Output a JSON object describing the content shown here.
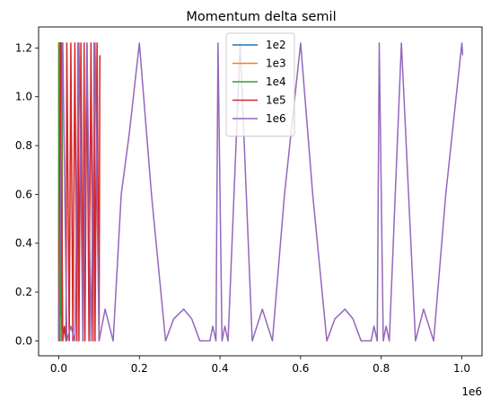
{
  "chart_data": {
    "type": "line",
    "title": "Momentum delta semil",
    "xlabel": "",
    "ylabel": "",
    "x_offset_label": "1e6",
    "xlim": [
      -50000,
      1050000
    ],
    "ylim": [
      -0.061,
      1.286
    ],
    "x_ticks": [
      0.0,
      0.2,
      0.4,
      0.6,
      0.8,
      1.0
    ],
    "x_tick_labels": [
      "0.0",
      "0.2",
      "0.4",
      "0.6",
      "0.8",
      "1.0"
    ],
    "y_ticks": [
      0.0,
      0.2,
      0.4,
      0.6,
      0.8,
      1.0,
      1.2
    ],
    "y_tick_labels": [
      "0.0",
      "0.2",
      "0.4",
      "0.6",
      "0.8",
      "1.0",
      "1.2"
    ],
    "grid": false,
    "legend_position": "top-center",
    "series": [
      {
        "name": "1e2",
        "color": "#1f77b4",
        "x": [
          0,
          10,
          20,
          30,
          40,
          50,
          60,
          70,
          80,
          90,
          100
        ],
        "y": [
          0.0,
          1.22,
          0.0,
          1.22,
          0.3,
          1.22,
          0.0,
          1.22,
          0.1,
          1.22,
          1.17
        ]
      },
      {
        "name": "1e3",
        "color": "#ff7f0e",
        "x": [
          0,
          100,
          200,
          300,
          400,
          500,
          600,
          700,
          800,
          900,
          1000
        ],
        "y": [
          0.0,
          1.22,
          0.0,
          1.22,
          0.2,
          1.22,
          0.0,
          1.22,
          0.1,
          1.22,
          1.17
        ]
      },
      {
        "name": "1e4",
        "color": "#2ca02c",
        "x": [
          0,
          1000,
          2000,
          3000,
          4000,
          5000,
          6000,
          7000,
          8000,
          9000,
          10000
        ],
        "y": [
          0.0,
          1.22,
          0.0,
          1.22,
          0.1,
          1.22,
          0.0,
          1.22,
          0.05,
          1.22,
          1.17
        ]
      },
      {
        "name": "1e5",
        "color": "#d62728",
        "x": [
          0,
          5000,
          10000,
          14000,
          18000,
          20000,
          26000,
          30000,
          35000,
          40000,
          45000,
          48000,
          50000,
          55000,
          60000,
          63000,
          65000,
          70000,
          75000,
          80000,
          85000,
          88000,
          90000,
          95000,
          100000,
          102000
        ],
        "y": [
          0.0,
          1.22,
          0.0,
          0.06,
          0.0,
          1.22,
          0.0,
          1.22,
          0.0,
          1.22,
          0.0,
          1.22,
          0.0,
          1.22,
          0.0,
          1.22,
          0.0,
          1.22,
          0.0,
          1.22,
          0.0,
          1.22,
          0.0,
          1.22,
          0.0,
          1.17
        ]
      },
      {
        "name": "1e6",
        "color": "#9467bd",
        "x": [
          0,
          10000,
          20000,
          30000,
          40000,
          50000,
          60000,
          70000,
          80000,
          90000,
          100000,
          115000,
          135000,
          155000,
          175000,
          200000,
          230000,
          265000,
          285000,
          310000,
          330000,
          350000,
          375000,
          382000,
          390000,
          395000,
          405000,
          412000,
          420000,
          450000,
          480000,
          505000,
          530000,
          560000,
          600000,
          630000,
          665000,
          685000,
          710000,
          730000,
          750000,
          775000,
          782000,
          790000,
          795000,
          805000,
          812000,
          820000,
          850000,
          885000,
          905000,
          930000,
          960000,
          1000000,
          1002000
        ],
        "y": [
          0.0,
          1.22,
          0.0,
          0.06,
          0.0,
          1.22,
          0.0,
          1.22,
          0.0,
          1.22,
          0.0,
          0.13,
          0.0,
          0.6,
          0.85,
          1.22,
          0.6,
          0.0,
          0.09,
          0.13,
          0.09,
          0.0,
          0.0,
          0.06,
          0.0,
          1.22,
          0.0,
          0.06,
          0.0,
          1.22,
          0.0,
          0.13,
          0.0,
          0.6,
          1.22,
          0.6,
          0.0,
          0.09,
          0.13,
          0.09,
          0.0,
          0.0,
          0.06,
          0.0,
          1.22,
          0.0,
          0.06,
          0.0,
          1.22,
          0.0,
          0.13,
          0.0,
          0.6,
          1.22,
          1.17
        ]
      }
    ]
  }
}
